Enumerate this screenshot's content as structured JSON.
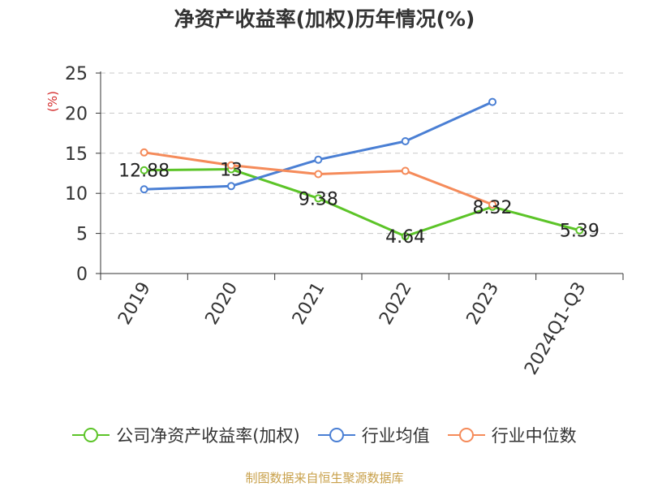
{
  "chart_data": {
    "type": "line",
    "title": "净资产收益率(加权)历年情况(%)",
    "ylabel": "(%)",
    "xlabel": "",
    "categories": [
      "2019",
      "2020",
      "2021",
      "2022",
      "2023",
      "2024Q1-Q3"
    ],
    "y_ticks": [
      "0",
      "5",
      "10",
      "15",
      "20",
      "25"
    ],
    "ylim": [
      0,
      25
    ],
    "grid": true,
    "legend_position": "bottom",
    "series": [
      {
        "name": "公司净资产收益率(加权)",
        "color": "#5cc428",
        "values": [
          12.88,
          13.0,
          9.38,
          4.64,
          8.32,
          5.39
        ],
        "labels": [
          "12.88",
          "13",
          "9.38",
          "4.64",
          "8.32",
          "5.39"
        ]
      },
      {
        "name": "行业均值",
        "color": "#4a7fd4",
        "values": [
          10.5,
          10.9,
          14.2,
          16.5,
          21.4,
          null
        ]
      },
      {
        "name": "行业中位数",
        "color": "#f58b5a",
        "values": [
          15.1,
          13.5,
          12.4,
          12.8,
          8.6,
          null
        ]
      }
    ]
  },
  "source": "制图数据来自恒生聚源数据库"
}
